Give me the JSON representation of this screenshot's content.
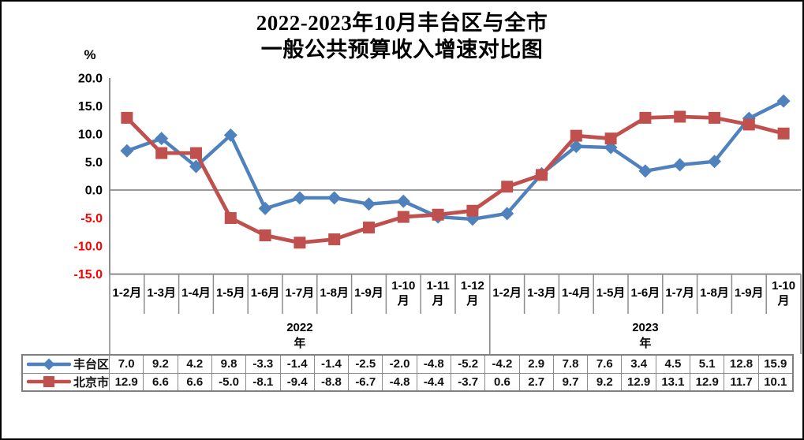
{
  "title": {
    "line1": "2022-2023年10月丰台区与全市",
    "line2": "一般公共预算收入增速对比图"
  },
  "axis": {
    "unit_label": "%"
  },
  "chart_data": {
    "type": "line",
    "title": "2022-2023年10月丰台区与全市一般公共预算收入增速对比图",
    "ylabel": "%",
    "xlabel": "",
    "ylim": [
      -15,
      20
    ],
    "ytick_step": 5,
    "ytick_labels": [
      "20.0",
      "15.0",
      "10.0",
      "5.0",
      "0.0",
      "-5.0",
      "-10.0",
      "-15.0"
    ],
    "ytick_values": [
      20,
      15,
      10,
      5,
      0,
      -5,
      -10,
      -15
    ],
    "negative_tick_color": "#ff0000",
    "positive_tick_color": "#000000",
    "grid": "zero-line-only",
    "axis_color": "#8c8c8c",
    "legend_position": "embedded-table-left",
    "categories": [
      "1-2月",
      "1-3月",
      "1-4月",
      "1-5月",
      "1-6月",
      "1-7月",
      "1-8月",
      "1-9月",
      "1-10月",
      "1-11月",
      "1-12月",
      "1-2月",
      "1-3月",
      "1-4月",
      "1-5月",
      "1-6月",
      "1-7月",
      "1-8月",
      "1-9月",
      "1-10月"
    ],
    "year_groups": [
      {
        "year": "2022",
        "suffix": "年",
        "span": 11
      },
      {
        "year": "2023",
        "suffix": "年",
        "span": 9
      }
    ],
    "series": [
      {
        "name": "丰台区",
        "color": "#4f81bd",
        "marker": "diamond",
        "values": [
          7.0,
          9.2,
          4.2,
          9.8,
          -3.3,
          -1.4,
          -1.4,
          -2.5,
          -2.0,
          -4.8,
          -5.2,
          -4.2,
          2.9,
          7.8,
          7.6,
          3.4,
          4.5,
          5.1,
          12.8,
          15.9
        ]
      },
      {
        "name": "北京市",
        "color": "#c0504d",
        "marker": "square",
        "values": [
          12.9,
          6.6,
          6.6,
          -5.0,
          -8.1,
          -9.4,
          -8.8,
          -6.7,
          -4.8,
          -4.4,
          -3.7,
          0.6,
          2.7,
          9.7,
          9.2,
          12.9,
          13.1,
          12.9,
          11.7,
          10.1
        ]
      }
    ]
  }
}
